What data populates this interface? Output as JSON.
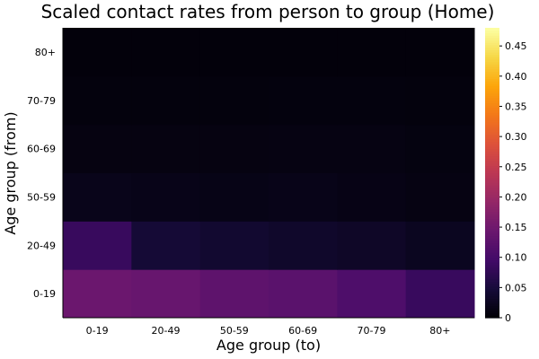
{
  "chart_data": {
    "type": "heatmap",
    "title": "Scaled contact rates from person to group (Home)",
    "xlabel": "Age group (to)",
    "ylabel": "Age group (from)",
    "x_categories": [
      "0-19",
      "20-49",
      "50-59",
      "60-69",
      "70-79",
      "80+"
    ],
    "y_categories": [
      "0-19",
      "20-49",
      "50-59",
      "60-69",
      "70-79",
      "80+"
    ],
    "values": [
      [
        0.145,
        0.14,
        0.13,
        0.125,
        0.11,
        0.085
      ],
      [
        0.085,
        0.045,
        0.04,
        0.035,
        0.032,
        0.025
      ],
      [
        0.02,
        0.018,
        0.016,
        0.018,
        0.015,
        0.013
      ],
      [
        0.012,
        0.012,
        0.012,
        0.013,
        0.013,
        0.011
      ],
      [
        0.008,
        0.008,
        0.008,
        0.009,
        0.009,
        0.008
      ],
      [
        0.006,
        0.006,
        0.006,
        0.006,
        0.006,
        0.006
      ]
    ],
    "colorbar": {
      "min": 0,
      "max": 0.48,
      "ticks": [
        "0",
        "0.05",
        "0.10",
        "0.15",
        "0.20",
        "0.25",
        "0.30",
        "0.35",
        "0.40",
        "0.45"
      ],
      "colormap": "inferno"
    },
    "grid": false
  }
}
